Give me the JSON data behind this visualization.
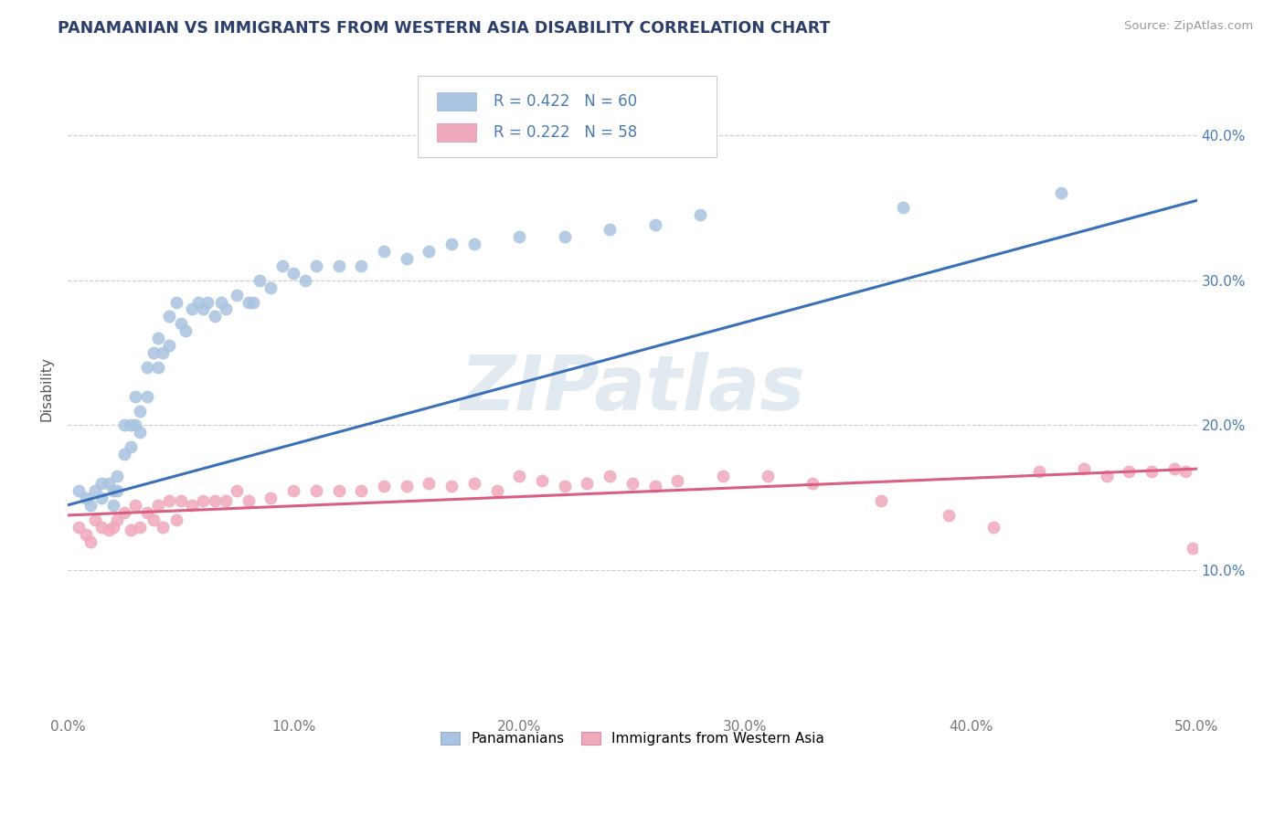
{
  "title": "PANAMANIAN VS IMMIGRANTS FROM WESTERN ASIA DISABILITY CORRELATION CHART",
  "source": "Source: ZipAtlas.com",
  "ylabel": "Disability",
  "xlim": [
    0.0,
    0.5
  ],
  "ylim": [
    0.0,
    0.45
  ],
  "xticks": [
    0.0,
    0.1,
    0.2,
    0.3,
    0.4,
    0.5
  ],
  "yticks": [
    0.1,
    0.2,
    0.3,
    0.4
  ],
  "xticklabels": [
    "0.0%",
    "10.0%",
    "20.0%",
    "30.0%",
    "40.0%",
    "50.0%"
  ],
  "yticklabels": [
    "10.0%",
    "20.0%",
    "30.0%",
    "40.0%"
  ],
  "blue_R": 0.422,
  "blue_N": 60,
  "pink_R": 0.222,
  "pink_N": 58,
  "blue_color": "#a8c4e0",
  "pink_color": "#f0a8bc",
  "blue_line_color": "#3a6fba",
  "pink_line_color": "#d95f82",
  "title_color": "#2c3e6b",
  "tick_color": "#4a7ab5",
  "watermark": "ZIPatlas",
  "legend_labels": [
    "Panamanians",
    "Immigrants from Western Asia"
  ],
  "blue_scatter_x": [
    0.005,
    0.008,
    0.01,
    0.012,
    0.015,
    0.015,
    0.018,
    0.02,
    0.02,
    0.022,
    0.022,
    0.025,
    0.025,
    0.028,
    0.028,
    0.03,
    0.03,
    0.032,
    0.032,
    0.035,
    0.035,
    0.038,
    0.04,
    0.04,
    0.042,
    0.045,
    0.045,
    0.048,
    0.05,
    0.052,
    0.055,
    0.058,
    0.06,
    0.062,
    0.065,
    0.068,
    0.07,
    0.075,
    0.08,
    0.082,
    0.085,
    0.09,
    0.095,
    0.1,
    0.105,
    0.11,
    0.12,
    0.13,
    0.14,
    0.15,
    0.16,
    0.17,
    0.18,
    0.2,
    0.22,
    0.24,
    0.26,
    0.28,
    0.37,
    0.44
  ],
  "blue_scatter_y": [
    0.155,
    0.15,
    0.145,
    0.155,
    0.16,
    0.15,
    0.16,
    0.155,
    0.145,
    0.165,
    0.155,
    0.2,
    0.18,
    0.2,
    0.185,
    0.22,
    0.2,
    0.21,
    0.195,
    0.24,
    0.22,
    0.25,
    0.26,
    0.24,
    0.25,
    0.275,
    0.255,
    0.285,
    0.27,
    0.265,
    0.28,
    0.285,
    0.28,
    0.285,
    0.275,
    0.285,
    0.28,
    0.29,
    0.285,
    0.285,
    0.3,
    0.295,
    0.31,
    0.305,
    0.3,
    0.31,
    0.31,
    0.31,
    0.32,
    0.315,
    0.32,
    0.325,
    0.325,
    0.33,
    0.33,
    0.335,
    0.338,
    0.345,
    0.35,
    0.36
  ],
  "pink_scatter_x": [
    0.005,
    0.008,
    0.01,
    0.012,
    0.015,
    0.018,
    0.02,
    0.022,
    0.025,
    0.028,
    0.03,
    0.032,
    0.035,
    0.038,
    0.04,
    0.042,
    0.045,
    0.048,
    0.05,
    0.055,
    0.06,
    0.065,
    0.07,
    0.075,
    0.08,
    0.09,
    0.1,
    0.11,
    0.12,
    0.13,
    0.14,
    0.15,
    0.16,
    0.17,
    0.18,
    0.19,
    0.2,
    0.21,
    0.22,
    0.23,
    0.24,
    0.25,
    0.26,
    0.27,
    0.29,
    0.31,
    0.33,
    0.36,
    0.39,
    0.41,
    0.43,
    0.45,
    0.46,
    0.47,
    0.48,
    0.49,
    0.495,
    0.498
  ],
  "pink_scatter_y": [
    0.13,
    0.125,
    0.12,
    0.135,
    0.13,
    0.128,
    0.13,
    0.135,
    0.14,
    0.128,
    0.145,
    0.13,
    0.14,
    0.135,
    0.145,
    0.13,
    0.148,
    0.135,
    0.148,
    0.145,
    0.148,
    0.148,
    0.148,
    0.155,
    0.148,
    0.15,
    0.155,
    0.155,
    0.155,
    0.155,
    0.158,
    0.158,
    0.16,
    0.158,
    0.16,
    0.155,
    0.165,
    0.162,
    0.158,
    0.16,
    0.165,
    0.16,
    0.158,
    0.162,
    0.165,
    0.165,
    0.16,
    0.148,
    0.138,
    0.13,
    0.168,
    0.17,
    0.165,
    0.168,
    0.168,
    0.17,
    0.168,
    0.115
  ]
}
